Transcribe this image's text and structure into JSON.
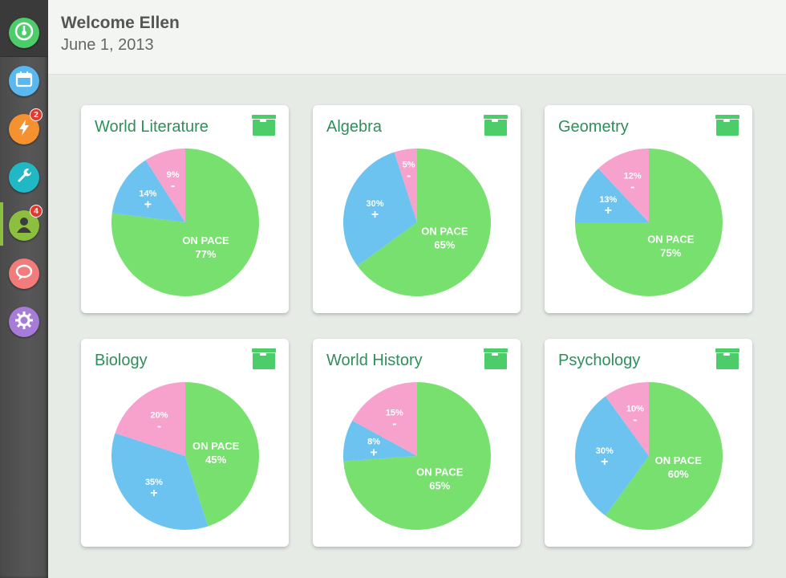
{
  "header": {
    "welcome": "Welcome Ellen",
    "date": "June 1, 2013"
  },
  "sidebar": {
    "items": [
      {
        "icon": "dashboard-icon",
        "color": "#4ccd6a",
        "active": false
      },
      {
        "icon": "calendar-icon",
        "color": "#5ab8f0",
        "active": false
      },
      {
        "icon": "lightning-icon",
        "color": "#f5922f",
        "badge": "2",
        "active": false
      },
      {
        "icon": "wrench-icon",
        "color": "#1fb8c4",
        "active": false
      },
      {
        "icon": "person-icon",
        "color": "#8cbf3f",
        "badge": "4",
        "active": true
      },
      {
        "icon": "chat-bubble-icon",
        "color": "#f27b7b",
        "active": false
      },
      {
        "icon": "gear-icon",
        "color": "#a77bd8",
        "active": false
      }
    ]
  },
  "colors": {
    "on_pace": "#77e06e",
    "ahead": "#6cc3f0",
    "behind": "#f7a1cd",
    "title": "#2f8f5a",
    "archive": "#4ccd6a"
  },
  "chart_data": [
    {
      "type": "pie",
      "title": "World Literature",
      "segments": [
        {
          "label": "ON PACE",
          "value": 77,
          "text": "77%"
        },
        {
          "label": "+",
          "value": 14,
          "text": "14%"
        },
        {
          "label": "-",
          "value": 9,
          "text": "9%"
        }
      ]
    },
    {
      "type": "pie",
      "title": "Algebra",
      "segments": [
        {
          "label": "ON PACE",
          "value": 65,
          "text": "65%"
        },
        {
          "label": "+",
          "value": 30,
          "text": "30%"
        },
        {
          "label": "-",
          "value": 5,
          "text": "5%"
        }
      ]
    },
    {
      "type": "pie",
      "title": "Geometry",
      "segments": [
        {
          "label": "ON PACE",
          "value": 75,
          "text": "75%"
        },
        {
          "label": "+",
          "value": 13,
          "text": "13%"
        },
        {
          "label": "-",
          "value": 12,
          "text": "12%"
        }
      ]
    },
    {
      "type": "pie",
      "title": "Biology",
      "segments": [
        {
          "label": "ON PACE",
          "value": 45,
          "text": "45%"
        },
        {
          "label": "+",
          "value": 35,
          "text": "35%"
        },
        {
          "label": "-",
          "value": 20,
          "text": "20%"
        }
      ]
    },
    {
      "type": "pie",
      "title": "World History",
      "segments": [
        {
          "label": "ON PACE",
          "value": 65,
          "text": "65%"
        },
        {
          "label": "+",
          "value": 8,
          "text": "8%"
        },
        {
          "label": "-",
          "value": 15,
          "text": "15%"
        }
      ]
    },
    {
      "type": "pie",
      "title": "Psychology",
      "segments": [
        {
          "label": "ON PACE",
          "value": 60,
          "text": "60%"
        },
        {
          "label": "+",
          "value": 30,
          "text": "30%"
        },
        {
          "label": "-",
          "value": 10,
          "text": "10%"
        }
      ]
    }
  ]
}
